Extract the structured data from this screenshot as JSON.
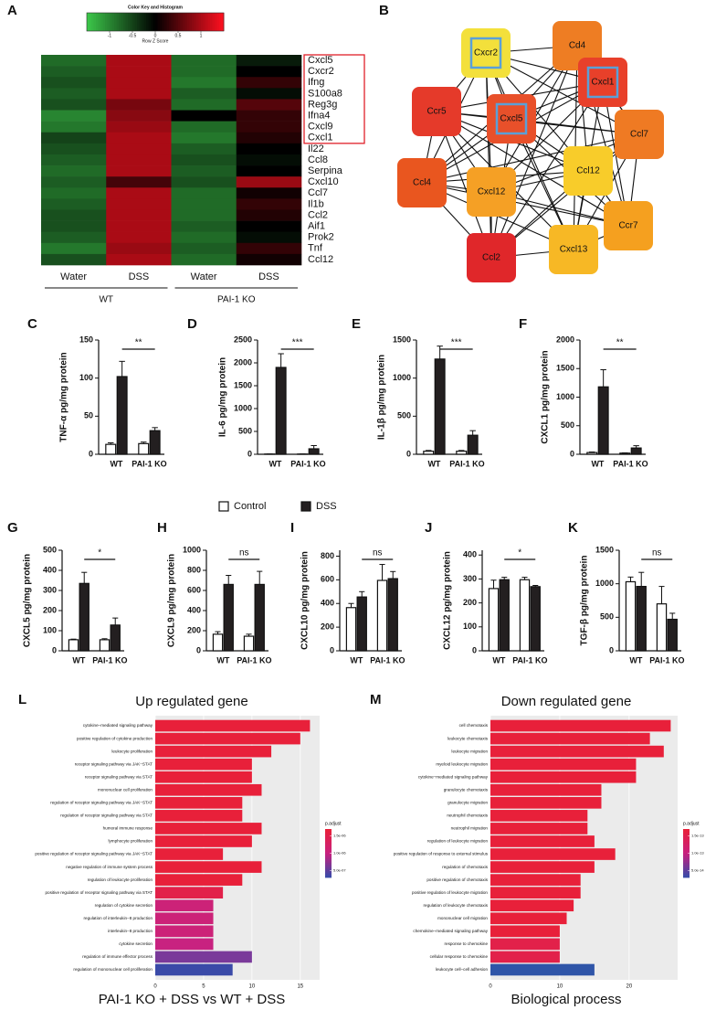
{
  "legend": [
    {
      "name": "Control",
      "color": "#ffffff"
    },
    {
      "name": "DSS",
      "color": "#231f20"
    }
  ],
  "network": {
    "panel": "B",
    "nodes": [
      {
        "label": "Cxcr2",
        "color": "#f3e03b",
        "highlight": true
      },
      {
        "label": "Cd4",
        "color": "#ee7d23",
        "highlight": false
      },
      {
        "label": "Cxcl1",
        "color": "#e8402a",
        "highlight": true
      },
      {
        "label": "Ccr5",
        "color": "#e53a2a",
        "highlight": false
      },
      {
        "label": "Cxcl5",
        "color": "#e8502a",
        "highlight": true
      },
      {
        "label": "Ccl7",
        "color": "#ef7a23",
        "highlight": false
      },
      {
        "label": "Ccl4",
        "color": "#e9561f",
        "highlight": false
      },
      {
        "label": "Cxcl12",
        "color": "#f5a025",
        "highlight": false
      },
      {
        "label": "Ccl12",
        "color": "#f8cc2a",
        "highlight": false
      },
      {
        "label": "Ccr7",
        "color": "#f5a01f",
        "highlight": false
      },
      {
        "label": "Ccl2",
        "color": "#e0272a",
        "highlight": false
      },
      {
        "label": "Cxcl13",
        "color": "#f7b825",
        "highlight": false
      }
    ]
  },
  "chart_data": [
    {
      "type": "heatmap",
      "panel": "A",
      "colorbar": {
        "title": "Color Key and Histogram",
        "xlabel": "Row Z Score",
        "xlim": [
          -1.5,
          1.5
        ],
        "xticks": [
          -1,
          -0.5,
          0,
          0.5,
          1
        ]
      },
      "rows": [
        "Cxcl5",
        "Cxcr2",
        "Ifng",
        "S100a8",
        "Reg3g",
        "Ifna4",
        "Cxcl9",
        "Cxcl1",
        "Il22",
        "Ccl8",
        "Serpina",
        "Cxcl10",
        "Ccl7",
        "Il1b",
        "Ccl2",
        "Aif1",
        "Prok2",
        "Tnf",
        "Ccl12"
      ],
      "columns": [
        "Water",
        "DSS",
        "Water",
        "DSS"
      ],
      "groups": [
        "WT",
        "PAI-1 KO"
      ],
      "boxed_rows": 8,
      "values": [
        [
          -0.8,
          1.0,
          -0.8,
          -0.2
        ],
        [
          -0.7,
          1.0,
          -0.8,
          0.0
        ],
        [
          -0.6,
          1.0,
          -0.9,
          0.3
        ],
        [
          -0.7,
          1.0,
          -0.7,
          -0.1
        ],
        [
          -0.6,
          0.7,
          -0.8,
          0.5
        ],
        [
          -1.0,
          0.8,
          0.0,
          0.3
        ],
        [
          -0.9,
          0.9,
          -0.8,
          0.3
        ],
        [
          -0.5,
          1.0,
          -0.9,
          0.2
        ],
        [
          -0.6,
          1.0,
          -0.7,
          0.0
        ],
        [
          -0.7,
          1.0,
          -0.6,
          -0.1
        ],
        [
          -0.8,
          1.0,
          -0.7,
          0.0
        ],
        [
          -0.7,
          0.4,
          -0.6,
          0.9
        ],
        [
          -0.8,
          1.0,
          -0.8,
          0.1
        ],
        [
          -0.7,
          1.0,
          -0.8,
          0.3
        ],
        [
          -0.6,
          1.0,
          -0.8,
          0.2
        ],
        [
          -0.6,
          1.0,
          -0.7,
          0.0
        ],
        [
          -0.7,
          1.0,
          -0.8,
          -0.1
        ],
        [
          -0.9,
          0.9,
          -0.7,
          0.3
        ],
        [
          -0.6,
          1.0,
          -0.8,
          0.1
        ]
      ]
    },
    {
      "type": "bar",
      "panel": "C",
      "ylabel": "TNF-α pg/mg protein",
      "categories": [
        "WT",
        "PAI-1 KO"
      ],
      "ylim": [
        0,
        150
      ],
      "yticks": [
        0,
        50,
        100,
        150
      ],
      "series": [
        {
          "values": [
            13,
            14
          ],
          "errors": [
            2,
            2
          ]
        },
        {
          "values": [
            102,
            31
          ],
          "errors": [
            20,
            4
          ]
        }
      ],
      "annotation": "**"
    },
    {
      "type": "bar",
      "panel": "D",
      "ylabel": "IL-6 pg/mg protein",
      "categories": [
        "WT",
        "PAI-1 KO"
      ],
      "ylim": [
        0,
        2500
      ],
      "yticks": [
        0,
        500,
        1000,
        1500,
        2000,
        2500
      ],
      "series": [
        {
          "values": [
            5,
            5
          ],
          "errors": [
            2,
            2
          ]
        },
        {
          "values": [
            1900,
            120
          ],
          "errors": [
            300,
            70
          ]
        }
      ],
      "annotation": "***"
    },
    {
      "type": "bar",
      "panel": "E",
      "ylabel": "IL-1β pg/mg protein",
      "categories": [
        "WT",
        "PAI-1 KO"
      ],
      "ylim": [
        0,
        1500
      ],
      "yticks": [
        0,
        500,
        1000,
        1500
      ],
      "series": [
        {
          "values": [
            40,
            40
          ],
          "errors": [
            10,
            10
          ]
        },
        {
          "values": [
            1250,
            250
          ],
          "errors": [
            170,
            60
          ]
        }
      ],
      "annotation": "***"
    },
    {
      "type": "bar",
      "panel": "F",
      "ylabel": "CXCL1 pg/mg protein",
      "categories": [
        "WT",
        "PAI-1 KO"
      ],
      "ylim": [
        0,
        2000
      ],
      "yticks": [
        0,
        500,
        1000,
        1500,
        2000
      ],
      "series": [
        {
          "values": [
            30,
            20
          ],
          "errors": [
            10,
            5
          ]
        },
        {
          "values": [
            1180,
            110
          ],
          "errors": [
            300,
            40
          ]
        }
      ],
      "annotation": "**"
    },
    {
      "type": "bar",
      "panel": "G",
      "ylabel": "CXCL5 pg/mg protein",
      "categories": [
        "WT",
        "PAI-1 KO"
      ],
      "ylim": [
        0,
        500
      ],
      "yticks": [
        0,
        100,
        200,
        300,
        400,
        500
      ],
      "series": [
        {
          "values": [
            55,
            55
          ],
          "errors": [
            3,
            5
          ]
        },
        {
          "values": [
            335,
            128
          ],
          "errors": [
            55,
            35
          ]
        }
      ],
      "annotation": "*"
    },
    {
      "type": "bar",
      "panel": "H",
      "ylabel": "CXCL9 pg/mg protein",
      "categories": [
        "WT",
        "PAI-1 KO"
      ],
      "ylim": [
        0,
        1000
      ],
      "yticks": [
        0,
        200,
        400,
        600,
        800,
        1000
      ],
      "series": [
        {
          "values": [
            165,
            145
          ],
          "errors": [
            25,
            20
          ]
        },
        {
          "values": [
            660,
            660
          ],
          "errors": [
            90,
            130
          ]
        }
      ],
      "annotation": "ns"
    },
    {
      "type": "bar",
      "panel": "I",
      "ylabel": "CXCL10 pg/mg protein",
      "categories": [
        "WT",
        "PAI-1 KO"
      ],
      "ylim": [
        0,
        850
      ],
      "yticks": [
        0,
        200,
        400,
        600,
        800
      ],
      "series": [
        {
          "values": [
            365,
            595
          ],
          "errors": [
            35,
            135
          ]
        },
        {
          "values": [
            455,
            610
          ],
          "errors": [
            45,
            60
          ]
        }
      ],
      "annotation": "ns"
    },
    {
      "type": "bar",
      "panel": "J",
      "ylabel": "CXCL12 pg/mg protein",
      "categories": [
        "WT",
        "PAI-1 KO"
      ],
      "ylim": [
        0,
        420
      ],
      "yticks": [
        0,
        100,
        200,
        300,
        400
      ],
      "series": [
        {
          "values": [
            260,
            297
          ],
          "errors": [
            35,
            10
          ]
        },
        {
          "values": [
            297,
            268
          ],
          "errors": [
            10,
            5
          ]
        }
      ],
      "annotation": "*"
    },
    {
      "type": "bar",
      "panel": "K",
      "ylabel": "TGF-β pg/mg protein",
      "categories": [
        "WT",
        "PAI-1 KO"
      ],
      "ylim": [
        0,
        1500
      ],
      "yticks": [
        0,
        500,
        1000,
        1500
      ],
      "series": [
        {
          "values": [
            1030,
            700
          ],
          "errors": [
            70,
            260
          ]
        },
        {
          "values": [
            960,
            470
          ],
          "errors": [
            210,
            90
          ]
        }
      ],
      "annotation": "ns"
    },
    {
      "type": "barh",
      "panel": "L",
      "title": "Up regulated gene",
      "caption": "PAI-1 KO + DSS  vs WT + DSS",
      "xlim": [
        0,
        17
      ],
      "xticks": [
        0,
        5,
        10,
        15
      ],
      "grid": true,
      "categories": [
        "cytokine−mediated signaling pathway",
        "positive regulation of cytokine production",
        "leukocyte proliferation",
        "receptor signaling pathway via JAK−STAT",
        "receptor signaling pathway via STAT",
        "mononuclear cell proliferation",
        "regulation of receptor signaling pathway via JAK−STAT",
        "regulation of receptor signaling pathway via STAT",
        "humoral immune response",
        "lymphocyte proliferation",
        "positive regulation of receptor signaling pathway via JAK−STAT",
        "negative regulation of immune system process",
        "regulation of leukocyte proliferation",
        "positive regulation of receptor signaling pathway via STAT",
        "regulation of cytokine secretion",
        "regulation of interleukin−8 production",
        "interleukin−8 production",
        "cytokine secretion",
        "regulation of immune effector process",
        "regulation of mononuclear cell proliferation"
      ],
      "values": [
        16,
        15,
        12,
        10,
        10,
        11,
        9,
        9,
        11,
        10,
        7,
        11,
        9,
        7,
        6,
        6,
        6,
        6,
        10,
        8
      ],
      "colors": [
        "#e8203a",
        "#e8203a",
        "#e8203a",
        "#e8203a",
        "#e8203a",
        "#e8203a",
        "#e8203a",
        "#e8203a",
        "#e8203a",
        "#e8203a",
        "#e8203a",
        "#e8203a",
        "#e8203a",
        "#e2214a",
        "#cc2278",
        "#cc2278",
        "#cc2278",
        "#c82280",
        "#7a3a9a",
        "#3a4aa8"
      ],
      "colorbar": {
        "title": "p.adjust",
        "lim": [
          3e-07,
          1.7e-06
        ],
        "ticks": [
          {
            "value": 5e-07,
            "label": "5.0e-07"
          },
          {
            "value": 1e-06,
            "label": "1.0e-06"
          },
          {
            "value": 1.5e-06,
            "label": "1.5e-06"
          }
        ]
      }
    },
    {
      "type": "barh",
      "panel": "M",
      "title": "Down regulated gene",
      "caption": "Biological process",
      "xlim": [
        0,
        27
      ],
      "xticks": [
        0,
        10,
        20
      ],
      "grid": true,
      "categories": [
        "cell chemotaxis",
        "leukocyte chemotaxis",
        "leukocyte migration",
        "myeloid leukocyte migration",
        "cytokine−mediated signaling pathway",
        "granulocyte chemotaxis",
        "granulocyte migration",
        "neutrophil chemotaxis",
        "neutrophil migration",
        "regulation of leukocyte migration",
        "positive regulation of response to external stimulus",
        "regulation of chemotaxis",
        "positive regulation of chemotaxis",
        "positive regulation of leukocyte migration",
        "regulation of leukocyte chemotaxis",
        "mononuclear cell migration",
        "chemokine−mediated signaling pathway",
        "response to chemokine",
        "cellular response to chemokine",
        "leukocyte cell−cell adhesion"
      ],
      "values": [
        26,
        23,
        25,
        21,
        21,
        16,
        16,
        14,
        14,
        15,
        18,
        15,
        13,
        13,
        12,
        11,
        10,
        10,
        10,
        15
      ],
      "colors": [
        "#e8203a",
        "#e8203a",
        "#e8203a",
        "#e8203a",
        "#e8203a",
        "#e8203a",
        "#e8203a",
        "#e8203a",
        "#e8203a",
        "#e8203a",
        "#e8203a",
        "#e8203a",
        "#e8203a",
        "#e8203a",
        "#e8203a",
        "#e8203a",
        "#e8203a",
        "#e2214a",
        "#e2214a",
        "#2f55a8"
      ],
      "colorbar": {
        "title": "p.adjust",
        "lim": [
          3e-14,
          1.7e-13
        ],
        "ticks": [
          {
            "value": 5e-14,
            "label": "5.0e-14"
          },
          {
            "value": 1e-13,
            "label": "1.0e-13"
          },
          {
            "value": 1.5e-13,
            "label": "1.5e-13"
          }
        ]
      }
    }
  ]
}
